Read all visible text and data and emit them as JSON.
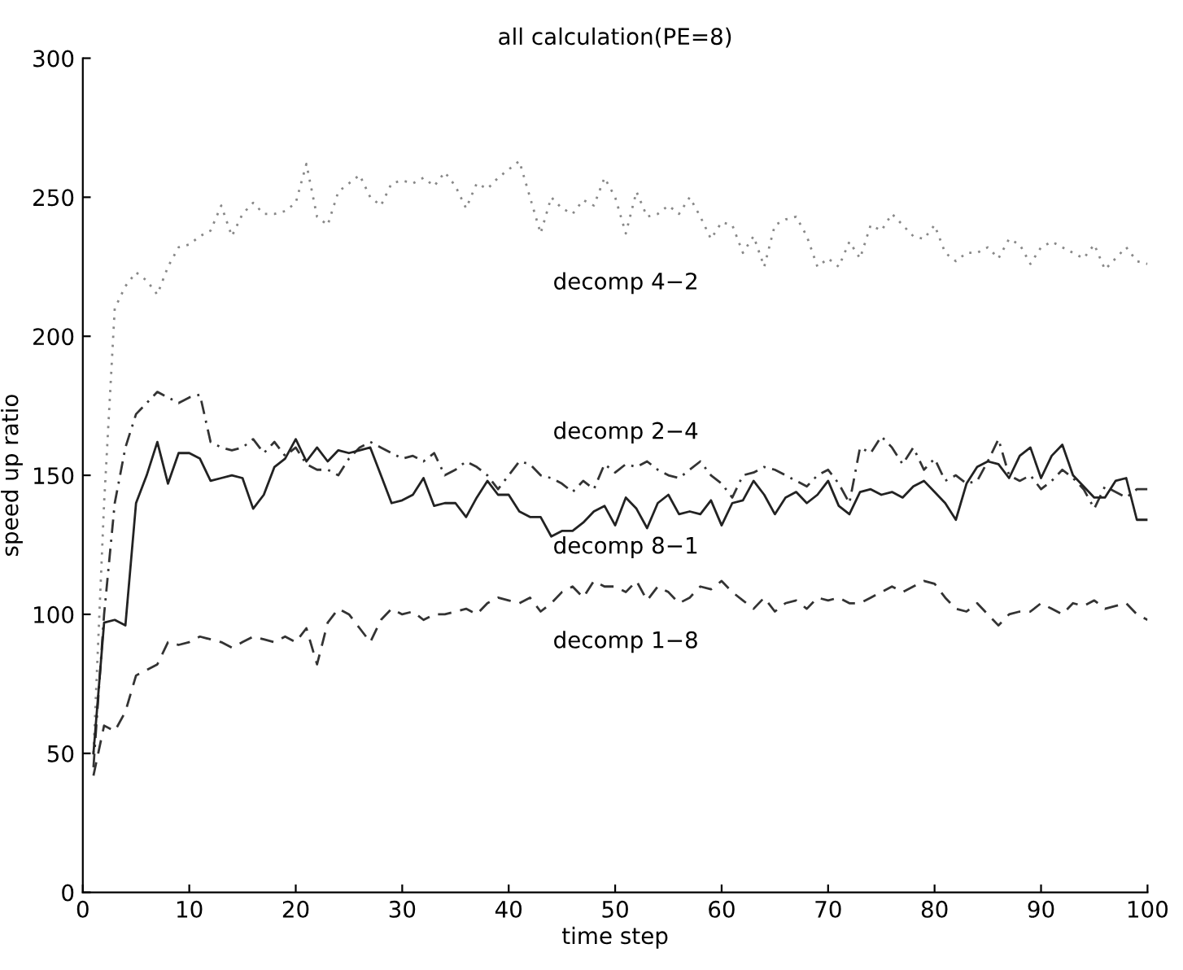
{
  "chart_data": {
    "type": "line",
    "title": "all calculation(PE=8)",
    "xlabel": "time step",
    "ylabel": "speed up ratio",
    "x": [
      1,
      2,
      3,
      4,
      5,
      6,
      7,
      8,
      9,
      10,
      11,
      12,
      13,
      14,
      15,
      16,
      17,
      18,
      19,
      20,
      21,
      22,
      23,
      24,
      25,
      26,
      27,
      28,
      29,
      30,
      31,
      32,
      33,
      34,
      35,
      36,
      37,
      38,
      39,
      40,
      41,
      42,
      43,
      44,
      45,
      46,
      47,
      48,
      49,
      50,
      51,
      52,
      53,
      54,
      55,
      56,
      57,
      58,
      59,
      60,
      61,
      62,
      63,
      64,
      65,
      66,
      67,
      68,
      69,
      70,
      71,
      72,
      73,
      74,
      75,
      76,
      77,
      78,
      79,
      80,
      81,
      82,
      83,
      84,
      85,
      86,
      87,
      88,
      89,
      90,
      91,
      92,
      93,
      94,
      95,
      96,
      97,
      98,
      99,
      100
    ],
    "xlim": [
      0,
      100
    ],
    "xticks": [
      0,
      10,
      20,
      30,
      40,
      50,
      60,
      70,
      80,
      90,
      100
    ],
    "ylim": [
      0,
      300
    ],
    "yticks": [
      0,
      50,
      100,
      150,
      200,
      250,
      300
    ],
    "grid": false,
    "legend": false,
    "marker": "none",
    "series": [
      {
        "name": "decomp 4−2",
        "color": "#888888",
        "line_style": "dotted",
        "values": [
          50,
          140,
          210,
          218,
          223,
          220,
          215,
          225,
          232,
          233,
          236,
          238,
          247,
          236,
          244,
          248,
          244,
          244,
          245,
          248,
          262,
          243,
          240,
          252,
          255,
          258,
          250,
          247,
          255,
          256,
          255,
          257,
          254,
          259,
          254,
          246,
          255,
          253,
          257,
          260,
          263,
          250,
          237,
          250,
          246,
          244,
          249,
          247,
          257,
          250,
          237,
          252,
          243,
          244,
          247,
          244,
          250,
          243,
          235,
          241,
          240,
          230,
          236,
          225,
          240,
          242,
          243,
          236,
          225,
          228,
          225,
          234,
          228,
          240,
          238,
          244,
          240,
          236,
          235,
          240,
          230,
          227,
          230,
          230,
          232,
          228,
          235,
          233,
          226,
          232,
          234,
          232,
          230,
          228,
          233,
          224,
          228,
          232,
          227,
          226
        ]
      },
      {
        "name": "decomp 2−4",
        "color": "#333333",
        "line_style": "dashdot",
        "values": [
          45,
          100,
          140,
          160,
          172,
          176,
          180,
          178,
          176,
          178,
          179,
          162,
          160,
          159,
          160,
          163,
          158,
          162,
          157,
          160,
          154,
          152,
          152,
          150,
          156,
          160,
          162,
          160,
          158,
          156,
          157,
          155,
          158,
          150,
          152,
          155,
          153,
          150,
          145,
          150,
          155,
          154,
          150,
          149,
          147,
          144,
          148,
          145,
          154,
          151,
          154,
          153,
          155,
          152,
          150,
          149,
          152,
          155,
          150,
          147,
          142,
          150,
          151,
          153,
          152,
          150,
          148,
          146,
          150,
          152,
          147,
          140,
          160,
          158,
          164,
          160,
          154,
          160,
          152,
          156,
          148,
          150,
          147,
          148,
          155,
          163,
          150,
          148,
          150,
          145,
          148,
          152,
          149,
          145,
          138,
          146,
          144,
          142,
          145,
          145
        ]
      },
      {
        "name": "decomp 8−1",
        "color": "#222222",
        "line_style": "solid",
        "values": [
          50,
          97,
          98,
          96,
          140,
          150,
          162,
          147,
          158,
          158,
          156,
          148,
          149,
          150,
          149,
          138,
          143,
          153,
          156,
          163,
          155,
          160,
          155,
          159,
          158,
          159,
          160,
          150,
          140,
          141,
          143,
          149,
          139,
          140,
          140,
          135,
          142,
          148,
          143,
          143,
          137,
          135,
          135,
          128,
          130,
          130,
          133,
          137,
          139,
          132,
          142,
          138,
          131,
          140,
          143,
          136,
          137,
          136,
          141,
          132,
          140,
          141,
          148,
          143,
          136,
          142,
          144,
          140,
          143,
          148,
          139,
          136,
          144,
          145,
          143,
          144,
          142,
          146,
          148,
          144,
          140,
          134,
          147,
          153,
          155,
          154,
          149,
          157,
          160,
          149,
          157,
          161,
          150,
          146,
          142,
          142,
          148,
          149,
          134,
          134
        ]
      },
      {
        "name": "decomp 1−8",
        "color": "#333333",
        "line_style": "dashed",
        "values": [
          42,
          60,
          58,
          65,
          78,
          80,
          82,
          90,
          89,
          90,
          92,
          91,
          90,
          88,
          90,
          92,
          91,
          90,
          92,
          90,
          95,
          82,
          97,
          102,
          100,
          95,
          90,
          98,
          102,
          100,
          101,
          98,
          100,
          100,
          101,
          102,
          100,
          104,
          106,
          105,
          104,
          106,
          101,
          104,
          108,
          110,
          106,
          112,
          110,
          110,
          108,
          112,
          105,
          110,
          108,
          104,
          106,
          110,
          109,
          112,
          108,
          105,
          102,
          106,
          101,
          104,
          105,
          102,
          106,
          105,
          106,
          104,
          104,
          106,
          108,
          110,
          108,
          110,
          112,
          111,
          106,
          102,
          101,
          104,
          100,
          96,
          100,
          101,
          101,
          104,
          102,
          100,
          104,
          103,
          105,
          102,
          103,
          104,
          100,
          98
        ]
      }
    ]
  }
}
